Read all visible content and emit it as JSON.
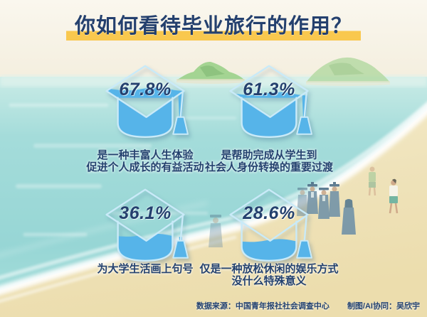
{
  "title": "你如何看待毕业旅行的作用？",
  "stats": [
    {
      "pct": "67.8%",
      "value": 67.8,
      "icon": "graduation-cap-icon",
      "desc_lines": [
        "是一种丰富人生体验",
        "促进个人成长的有益活动"
      ]
    },
    {
      "pct": "61.3%",
      "value": 61.3,
      "icon": "graduation-cap-icon",
      "desc_lines": [
        "是帮助完成从学生到",
        "社会人身份转换的重要过渡"
      ]
    },
    {
      "pct": "36.1%",
      "value": 36.1,
      "icon": "graduation-cap-icon",
      "desc_lines": [
        "为大学生活画上句号"
      ]
    },
    {
      "pct": "28.6%",
      "value": 28.6,
      "icon": "graduation-cap-icon",
      "desc_lines": [
        "仅是一种放松休闲的娱乐方式",
        "没什么特殊意义"
      ]
    }
  ],
  "footer": {
    "source_label": "数据来源：中国青年报社社会调查中心",
    "credit_label": "制图/AI协同：吴欣宇"
  },
  "colors": {
    "title_navy": "#24406e",
    "highlight_yellow": "#f9c84e",
    "cap_blue": "#56b4e9",
    "cap_outline": "#c9eaf8",
    "sea_turquoise": "#9dd8d6",
    "sand": "#efe3bb",
    "island_green": "#9ed28c"
  },
  "chart_data": {
    "type": "bar",
    "variant": "pictogram-graduation-cap-fill",
    "title": "你如何看待毕业旅行的作用？",
    "categories": [
      "是一种丰富人生体验，促进个人成长的有益活动",
      "是帮助完成从学生到社会人身份转换的重要过渡",
      "为大学生活画上句号",
      "仅是一种放松休闲的娱乐方式，没什么特殊意义"
    ],
    "values": [
      67.8,
      61.3,
      36.1,
      28.6
    ],
    "unit": "%",
    "value_range": [
      0,
      100
    ],
    "legend": "none",
    "source": "中国青年报社社会调查中心"
  }
}
